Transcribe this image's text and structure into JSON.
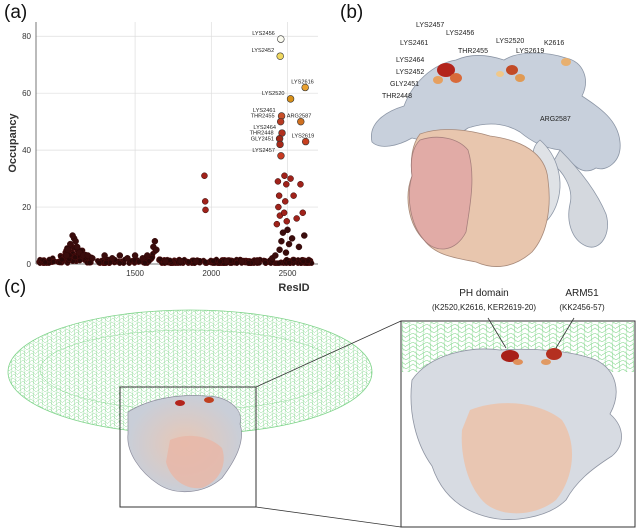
{
  "panels": {
    "a": "(a)",
    "b": "(b)",
    "c": "(c)"
  },
  "chart_data": {
    "type": "scatter",
    "xlabel": "ResID",
    "ylabel": "Occupancy",
    "xlim": [
      850,
      2700
    ],
    "ylim": [
      0,
      85
    ],
    "xticks": [
      "1500",
      "2000",
      "2500"
    ],
    "xtick_values": [
      1500,
      2000,
      2500
    ],
    "yticks": [
      "0",
      "20",
      "40",
      "60",
      "80"
    ],
    "ytick_values": [
      0,
      20,
      40,
      60,
      80
    ],
    "grid": true,
    "highlighted": [
      {
        "label": "LYS2456",
        "x": 2456,
        "y": 79,
        "color": "#fbfbf0"
      },
      {
        "label": "LYS2452",
        "x": 2452,
        "y": 73,
        "color": "#f0d860"
      },
      {
        "label": "LYS2616",
        "x": 2616,
        "y": 62,
        "color": "#e8a030"
      },
      {
        "label": "LYS2520",
        "x": 2520,
        "y": 58,
        "color": "#d89018"
      },
      {
        "label": "LYS2461",
        "x": 2461,
        "y": 52,
        "color": "#c8502a"
      },
      {
        "label": "ARG2587",
        "x": 2587,
        "y": 50,
        "color": "#d07020"
      },
      {
        "label": "THR2455",
        "x": 2455,
        "y": 50,
        "color": "#b83a22"
      },
      {
        "label": "LYS2464",
        "x": 2464,
        "y": 46,
        "color": "#b0301e"
      },
      {
        "label": "THR2448",
        "x": 2448,
        "y": 44,
        "color": "#a02818"
      },
      {
        "label": "LYS2619",
        "x": 2619,
        "y": 43,
        "color": "#c84020"
      },
      {
        "label": "GLY2451",
        "x": 2451,
        "y": 42,
        "color": "#a82818"
      },
      {
        "label": "LYS2457",
        "x": 2457,
        "y": 38,
        "color": "#c83a22"
      }
    ],
    "background": [
      {
        "x": 1955,
        "y": 31
      },
      {
        "x": 1960,
        "y": 22
      },
      {
        "x": 1962,
        "y": 19
      },
      {
        "x": 2437,
        "y": 29
      },
      {
        "x": 2445,
        "y": 24
      },
      {
        "x": 2440,
        "y": 20
      },
      {
        "x": 2450,
        "y": 17
      },
      {
        "x": 2480,
        "y": 31
      },
      {
        "x": 2492,
        "y": 28
      },
      {
        "x": 2485,
        "y": 22
      },
      {
        "x": 2478,
        "y": 18
      },
      {
        "x": 2495,
        "y": 15
      },
      {
        "x": 2500,
        "y": 12
      },
      {
        "x": 2470,
        "y": 11
      },
      {
        "x": 2520,
        "y": 30
      },
      {
        "x": 2540,
        "y": 24
      },
      {
        "x": 2560,
        "y": 16
      },
      {
        "x": 2585,
        "y": 28
      },
      {
        "x": 2600,
        "y": 18
      },
      {
        "x": 2430,
        "y": 14
      },
      {
        "x": 2460,
        "y": 8
      },
      {
        "x": 2510,
        "y": 7
      },
      {
        "x": 2530,
        "y": 9
      },
      {
        "x": 2575,
        "y": 6
      },
      {
        "x": 2610,
        "y": 10
      },
      {
        "x": 2448,
        "y": 5
      },
      {
        "x": 2490,
        "y": 4
      },
      {
        "x": 1630,
        "y": 8
      },
      {
        "x": 1620,
        "y": 6
      },
      {
        "x": 1640,
        "y": 5
      },
      {
        "x": 1100,
        "y": 9
      },
      {
        "x": 1090,
        "y": 10
      },
      {
        "x": 1110,
        "y": 8
      },
      {
        "x": 1075,
        "y": 7
      },
      {
        "x": 1120,
        "y": 6
      },
      {
        "x": 1060,
        "y": 5
      },
      {
        "x": 1135,
        "y": 4
      },
      {
        "x": 1050,
        "y": 3
      },
      {
        "x": 1160,
        "y": 3
      },
      {
        "x": 1190,
        "y": 3
      },
      {
        "x": 1220,
        "y": 2
      },
      {
        "x": 1300,
        "y": 3
      },
      {
        "x": 1350,
        "y": 2
      },
      {
        "x": 1400,
        "y": 3
      },
      {
        "x": 1450,
        "y": 2
      },
      {
        "x": 1500,
        "y": 3
      },
      {
        "x": 1550,
        "y": 2
      },
      {
        "x": 1580,
        "y": 3
      },
      {
        "x": 1700,
        "y": 1
      },
      {
        "x": 1800,
        "y": 1
      },
      {
        "x": 1900,
        "y": 1
      },
      {
        "x": 2100,
        "y": 1
      },
      {
        "x": 2200,
        "y": 1
      },
      {
        "x": 2300,
        "y": 1
      },
      {
        "x": 2400,
        "y": 2
      },
      {
        "x": 2420,
        "y": 3
      }
    ]
  },
  "panel_b": {
    "labels": [
      "LYS2457",
      "LYS2456",
      "LYS2461",
      "THR2455",
      "LYS2464",
      "LYS2452",
      "GLY2451",
      "THR2448",
      "LYS2520",
      "K2616",
      "LYS2619",
      "ARG2587"
    ]
  },
  "panel_c": {
    "ph_domain_title": "PH domain",
    "ph_domain_residues": "(K2520,K2616, KER2619-20)",
    "arm51_title": "ARM51",
    "arm51_residues": "(KK2456-57)"
  }
}
